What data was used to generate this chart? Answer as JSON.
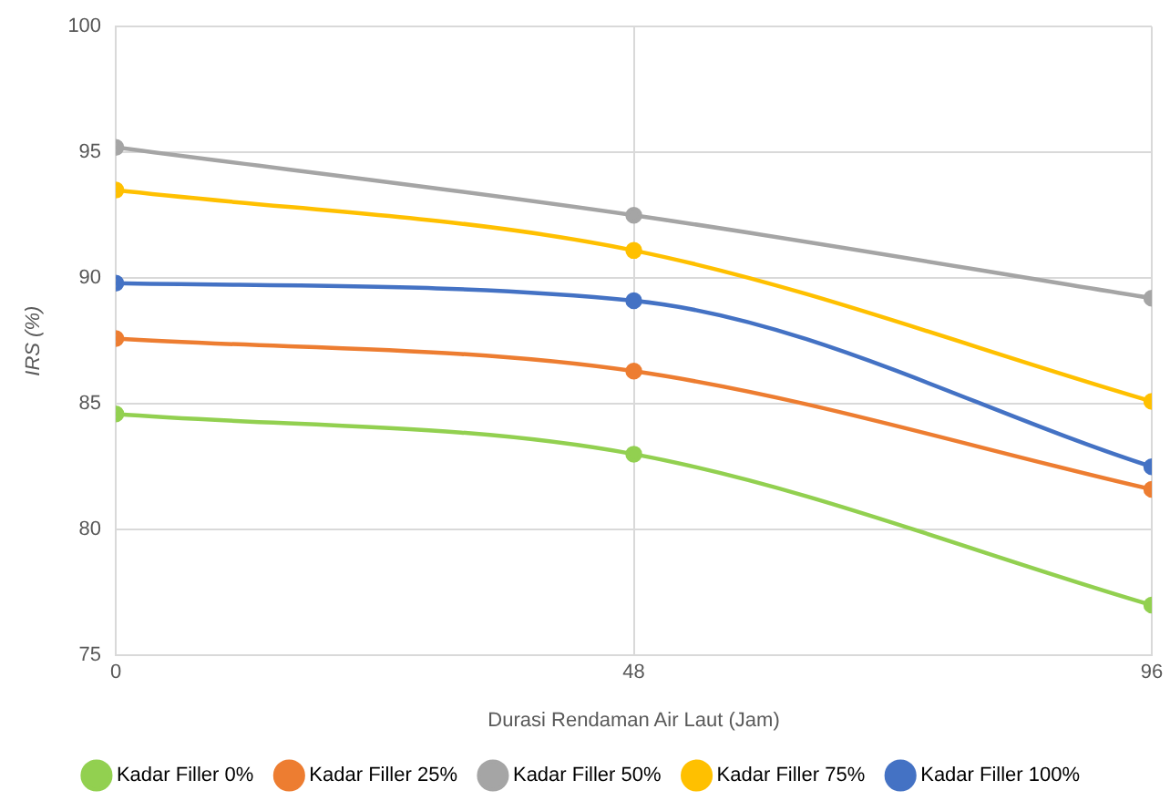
{
  "chart_data": {
    "type": "line",
    "xlabel": "Durasi Rendaman Air Laut (Jam)",
    "ylabel": "IRS (%)",
    "x": [
      0,
      48,
      96
    ],
    "xlim": [
      0,
      96
    ],
    "xticks": [
      0,
      48,
      96
    ],
    "ylim": [
      75,
      100
    ],
    "yticks": [
      75,
      80,
      85,
      90,
      95,
      100
    ],
    "grid": true,
    "legend": "bottom",
    "marker": "circle",
    "line_style": "solid",
    "series": [
      {
        "name": "Kadar Filler 0%",
        "color": "#92d050",
        "values": [
          84.6,
          83.0,
          77.0
        ]
      },
      {
        "name": "Kadar Filler 25%",
        "color": "#ed7d31",
        "values": [
          87.6,
          86.3,
          81.6
        ]
      },
      {
        "name": "Kadar Filler 50%",
        "color": "#a5a5a5",
        "values": [
          95.2,
          92.5,
          89.2
        ]
      },
      {
        "name": "Kadar Filler 75%",
        "color": "#ffc000",
        "values": [
          93.5,
          91.1,
          85.1
        ]
      },
      {
        "name": "Kadar Filler 100%",
        "color": "#4472c4",
        "values": [
          89.8,
          89.1,
          82.5
        ]
      }
    ]
  }
}
